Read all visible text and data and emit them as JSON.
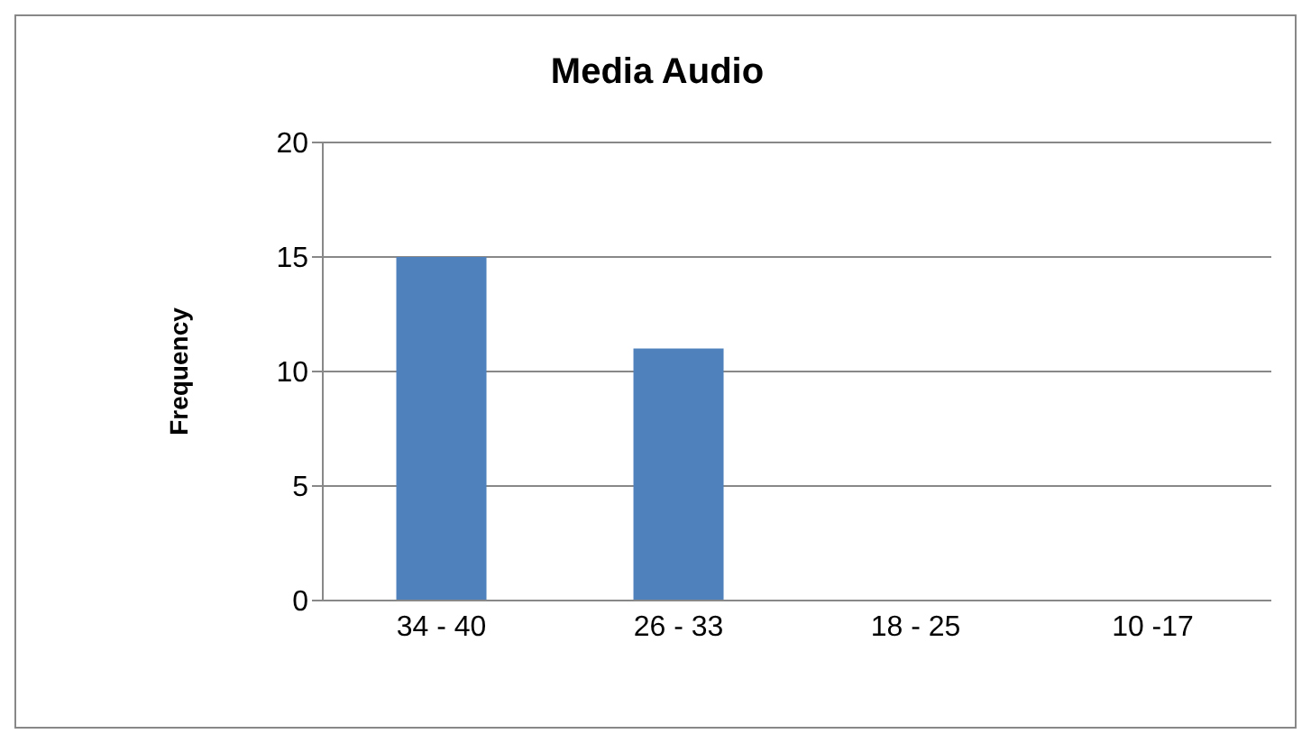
{
  "chart_data": {
    "type": "bar",
    "title": "Media Audio",
    "ylabel": "Frequency",
    "categories": [
      "34 - 40",
      "26 - 33",
      "18 - 25",
      "10 -17"
    ],
    "values": [
      15,
      11,
      0,
      0
    ],
    "color": "#4f81bd",
    "ylim": [
      0,
      20
    ],
    "yticks": [
      0,
      5,
      10,
      15,
      20
    ],
    "grid": "y",
    "legend": false
  }
}
